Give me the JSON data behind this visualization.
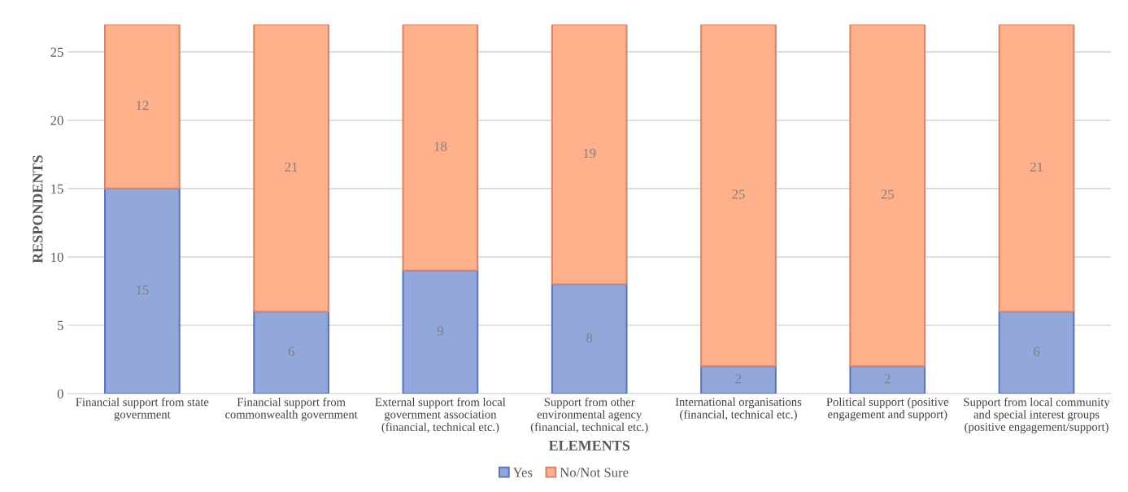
{
  "chart_data": {
    "type": "bar",
    "stacked": true,
    "xlabel": "ELEMENTS",
    "ylabel": "RESPONDENTS",
    "categories": [
      "Financial support from state government",
      "Financial support from commonwealth government",
      "External support from local government association (financial, technical etc.)",
      "Support from other environmental agency (financial, technical etc.)",
      "International organisations (financial, technical etc.)",
      "Political support (positive engagement and support)",
      "Support from local community and special interest groups (positive engagement/support)"
    ],
    "series": [
      {
        "name": "Yes",
        "color": "#92a8da",
        "values": [
          15,
          6,
          9,
          8,
          2,
          2,
          6
        ]
      },
      {
        "name": "No/Not Sure",
        "color": "#fdb08a",
        "values": [
          12,
          21,
          18,
          19,
          25,
          25,
          21
        ]
      }
    ],
    "ylim": [
      0,
      27
    ],
    "yticks": [
      0,
      5,
      10,
      15,
      20,
      25
    ],
    "grid": "y",
    "legend": "bottom",
    "data_labels": true
  }
}
